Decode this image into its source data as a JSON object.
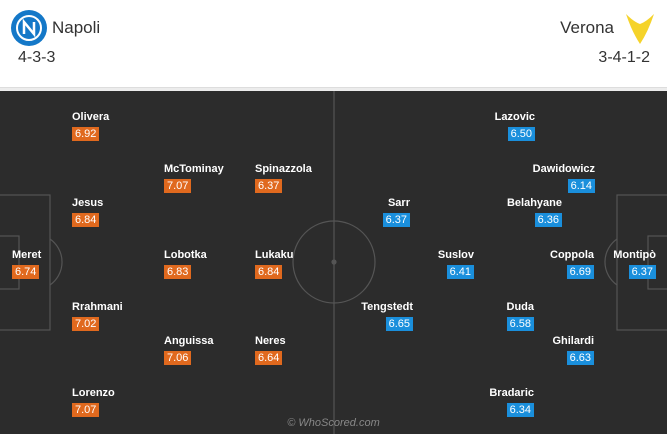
{
  "home": {
    "name": "Napoli",
    "formation": "4-3-3",
    "players": [
      {
        "name": "Olivera",
        "rating": "6.92"
      },
      {
        "name": "McTominay",
        "rating": "7.07"
      },
      {
        "name": "Spinazzola",
        "rating": "6.37"
      },
      {
        "name": "Jesus",
        "rating": "6.84"
      },
      {
        "name": "Meret",
        "rating": "6.74"
      },
      {
        "name": "Lobotka",
        "rating": "6.83"
      },
      {
        "name": "Lukaku",
        "rating": "6.84"
      },
      {
        "name": "Rrahmani",
        "rating": "7.02"
      },
      {
        "name": "Anguissa",
        "rating": "7.06"
      },
      {
        "name": "Neres",
        "rating": "6.64"
      },
      {
        "name": "Lorenzo",
        "rating": "7.07"
      }
    ]
  },
  "away": {
    "name": "Verona",
    "formation": "3-4-1-2",
    "players": [
      {
        "name": "Lazovic",
        "rating": "6.50"
      },
      {
        "name": "Dawidowicz",
        "rating": "6.14"
      },
      {
        "name": "Sarr",
        "rating": "6.37"
      },
      {
        "name": "Belahyane",
        "rating": "6.36"
      },
      {
        "name": "Suslov",
        "rating": "6.41"
      },
      {
        "name": "Coppola",
        "rating": "6.69"
      },
      {
        "name": "Montipò",
        "rating": "6.37"
      },
      {
        "name": "Tengstedt",
        "rating": "6.65"
      },
      {
        "name": "Duda",
        "rating": "6.58"
      },
      {
        "name": "Ghilardi",
        "rating": "6.63"
      },
      {
        "name": "Bradaric",
        "rating": "6.34"
      }
    ]
  },
  "watermark": "© WhoScored.com"
}
